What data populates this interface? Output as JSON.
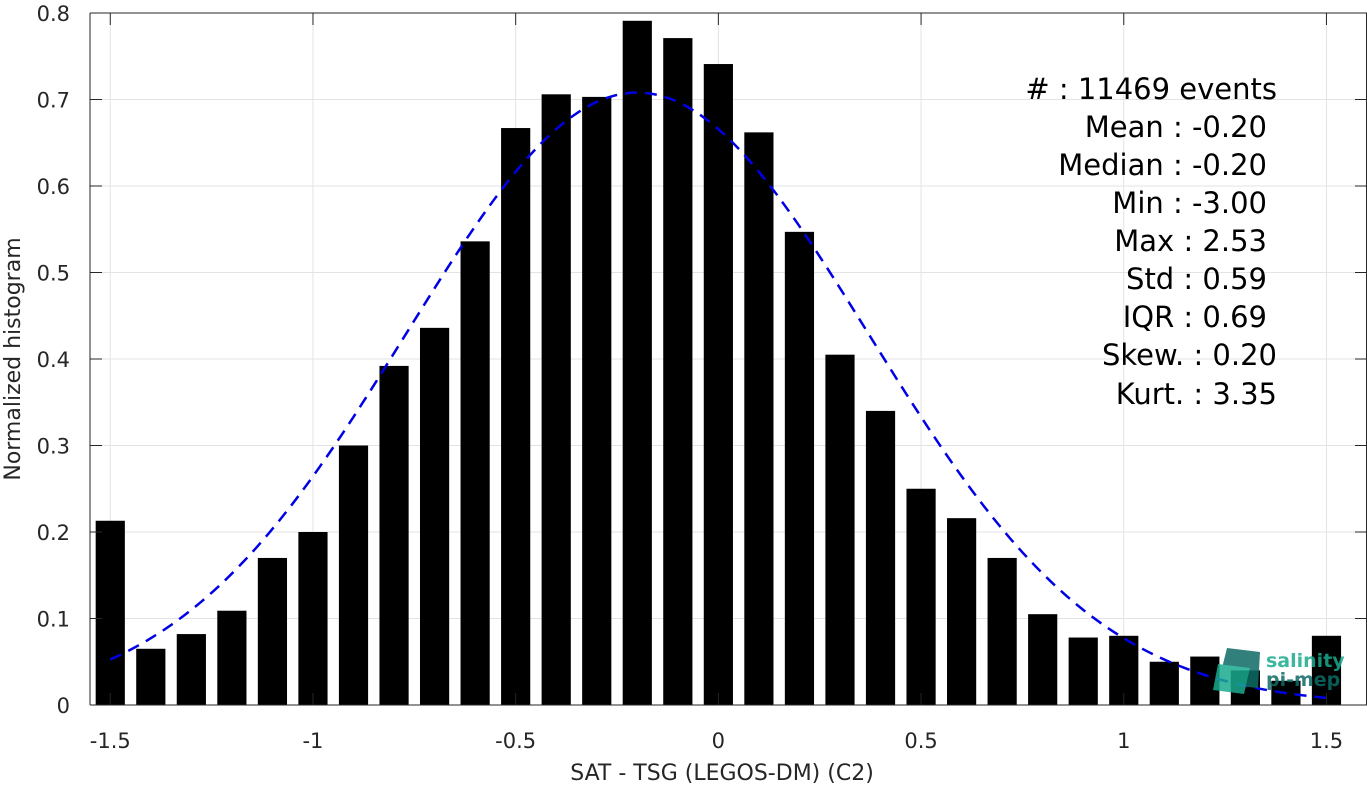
{
  "chart_data": {
    "type": "bar",
    "xlabel": "SAT - TSG (LEGOS-DM) (C2)",
    "ylabel": "Normalized histogram",
    "xlim": [
      -1.55,
      1.6
    ],
    "ylim": [
      0,
      0.8
    ],
    "xticks": [
      -1.5,
      -1,
      -0.5,
      0,
      0.5,
      1,
      1.5
    ],
    "xtick_labels": [
      "-1.5",
      "-1",
      "-0.5",
      "0",
      "0.5",
      "1",
      "1.5"
    ],
    "yticks": [
      0,
      0.1,
      0.2,
      0.3,
      0.4,
      0.5,
      0.6,
      0.7,
      0.8
    ],
    "ytick_labels": [
      "0",
      "0.1",
      "0.2",
      "0.3",
      "0.4",
      "0.5",
      "0.6",
      "0.7",
      "0.8"
    ],
    "grid": true,
    "bar_color": "#000000",
    "bins": [
      -1.5,
      -1.4,
      -1.3,
      -1.2,
      -1.1,
      -1.0,
      -0.9,
      -0.8,
      -0.7,
      -0.6,
      -0.5,
      -0.4,
      -0.3,
      -0.2,
      -0.1,
      0.0,
      0.1,
      0.2,
      0.3,
      0.4,
      0.5,
      0.6,
      0.7,
      0.8,
      0.9,
      1.0,
      1.1,
      1.2,
      1.3,
      1.4,
      1.5
    ],
    "values": [
      0.213,
      0.065,
      0.082,
      0.109,
      0.17,
      0.2,
      0.3,
      0.392,
      0.436,
      0.536,
      0.667,
      0.706,
      0.703,
      0.791,
      0.771,
      0.741,
      0.662,
      0.547,
      0.405,
      0.34,
      0.25,
      0.216,
      0.17,
      0.105,
      0.078,
      0.08,
      0.05,
      0.056,
      0.04,
      0.028,
      0.08
    ],
    "fit": {
      "type": "gaussian",
      "mean": -0.2,
      "std": 0.57,
      "peak": 0.708,
      "x_range": [
        -1.5,
        1.5
      ],
      "color": "#0000e6",
      "style": "dashed"
    },
    "stats": [
      {
        "id": "events",
        "text": "#  : 11469 events"
      },
      {
        "id": "mean",
        "text": "Mean : -0.20"
      },
      {
        "id": "median",
        "text": "Median : -0.20"
      },
      {
        "id": "min",
        "text": "Min : -3.00"
      },
      {
        "id": "max",
        "text": "Max : 2.53"
      },
      {
        "id": "std",
        "text": "Std : 0.59"
      },
      {
        "id": "iqr",
        "text": "IQR : 0.69"
      },
      {
        "id": "skew",
        "text": "Skew. : 0.20"
      },
      {
        "id": "kurt",
        "text": "Kurt. : 3.35"
      }
    ]
  },
  "logo": {
    "line1": "salinity",
    "line2": "pi-mep",
    "color_primary": "#1aab8f",
    "color_secondary": "#0e6b66"
  }
}
